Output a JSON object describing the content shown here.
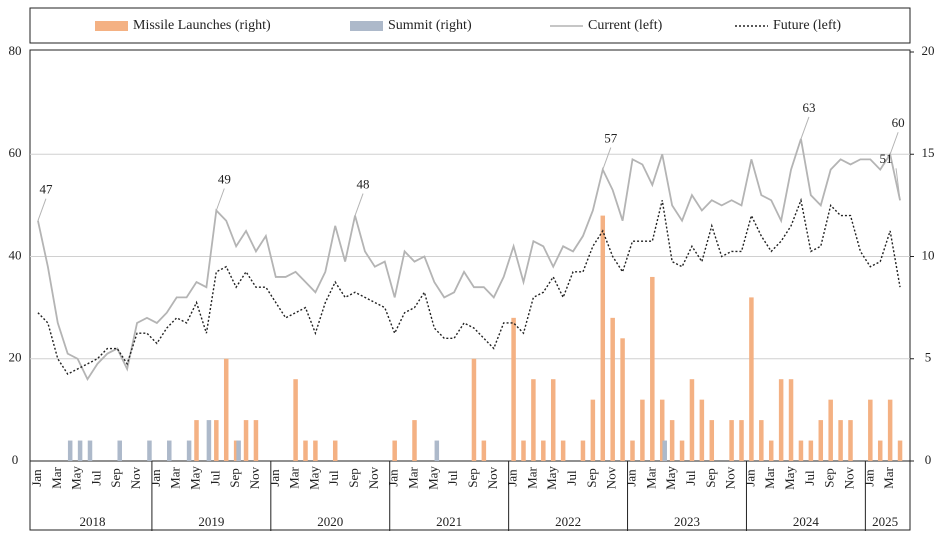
{
  "chart_data": {
    "type": "combo",
    "legend": {
      "position": "top"
    },
    "ylim": [
      0,
      80
    ],
    "yticks": [
      0,
      20,
      40,
      60,
      80
    ],
    "y2lim": [
      0,
      20
    ],
    "y2ticks": [
      0,
      5,
      10,
      15,
      20
    ],
    "grid": true,
    "categories": [
      "Jan",
      null,
      "Mar",
      null,
      "May",
      null,
      "Jul",
      null,
      "Sep",
      null,
      "Nov",
      null,
      "Jan",
      null,
      "Mar",
      null,
      "May",
      null,
      "Jul",
      null,
      "Sep",
      null,
      "Nov",
      null,
      "Jan",
      null,
      "Mar",
      null,
      "May",
      null,
      "Jul",
      null,
      "Sep",
      null,
      "Nov",
      null,
      "Jan",
      null,
      "Mar",
      null,
      "May",
      null,
      "Jul",
      null,
      "Sep",
      null,
      "Nov",
      null,
      "Jan",
      null,
      "Mar",
      null,
      "May",
      null,
      "Jul",
      null,
      "Sep",
      null,
      "Nov",
      null,
      "Jan",
      null,
      "Mar",
      null,
      "May",
      null,
      "Jul",
      null,
      "Sep",
      null,
      "Nov",
      null,
      "Jan",
      null,
      "Mar",
      null,
      "May",
      null,
      "Jul",
      null,
      "Sep",
      null,
      "Nov",
      null,
      "Jan",
      null,
      "Mar",
      null
    ],
    "years": [
      "2018",
      "2019",
      "2020",
      "2021",
      "2022",
      "2023",
      "2024",
      "2025"
    ],
    "series": [
      {
        "name": "Missile Launches (right)",
        "type": "bar",
        "axis": "y2",
        "color": "#f4b183",
        "values": [
          0,
          0,
          0,
          0,
          0,
          0,
          0,
          0,
          0,
          0,
          0,
          0,
          0,
          0,
          0,
          0,
          2,
          0,
          2,
          5,
          1,
          2,
          2,
          0,
          0,
          0,
          4,
          1,
          1,
          0,
          1,
          0,
          0,
          0,
          0,
          0,
          1,
          0,
          2,
          0,
          0,
          0,
          0,
          0,
          5,
          1,
          0,
          0,
          7,
          1,
          4,
          1,
          4,
          1,
          0,
          1,
          3,
          12,
          7,
          6,
          1,
          3,
          9,
          3,
          2,
          1,
          4,
          3,
          2,
          0,
          2,
          2,
          8,
          2,
          1,
          4,
          4,
          1,
          1,
          2,
          3,
          2,
          2,
          0,
          3,
          1,
          3,
          1
        ]
      },
      {
        "name": "Summit (right)",
        "type": "bar",
        "axis": "y2",
        "color": "#adb9ca",
        "values": [
          0,
          0,
          0,
          1,
          1,
          1,
          0,
          0,
          1,
          0,
          0,
          1,
          0,
          1,
          0,
          1,
          0,
          2,
          0,
          0,
          1,
          0,
          0,
          0,
          0,
          0,
          0,
          0,
          0,
          0,
          0,
          0,
          0,
          0,
          0,
          0,
          0,
          0,
          0,
          0,
          1,
          0,
          0,
          0,
          0,
          0,
          0,
          0,
          0,
          0,
          0,
          0,
          0,
          0,
          0,
          0,
          0,
          0,
          0,
          0,
          0,
          0,
          0,
          1,
          0,
          0,
          0,
          0,
          0,
          0,
          0,
          0,
          0,
          0,
          0,
          0,
          0,
          0,
          0,
          0,
          0,
          0,
          0,
          0,
          0,
          0,
          0,
          0
        ]
      },
      {
        "name": "Current (left)",
        "type": "line",
        "color": "#b4b4b4",
        "values": [
          47,
          38,
          27,
          21,
          20,
          16,
          19,
          21,
          22,
          18,
          27,
          28,
          27,
          29,
          32,
          32,
          35,
          34,
          49,
          47,
          42,
          45,
          41,
          44,
          36,
          36,
          37,
          35,
          33,
          37,
          46,
          39,
          48,
          41,
          38,
          39,
          32,
          41,
          39,
          40,
          35,
          32,
          33,
          37,
          34,
          34,
          32,
          36,
          42,
          35,
          43,
          42,
          38,
          42,
          41,
          44,
          49,
          57,
          53,
          47,
          59,
          58,
          54,
          60,
          50,
          47,
          52,
          49,
          51,
          50,
          51,
          50,
          59,
          52,
          51,
          47,
          57,
          63,
          52,
          50,
          57,
          59,
          58,
          59,
          59,
          57,
          60,
          51
        ],
        "value_labels": [
          "47",
          null,
          null,
          null,
          null,
          null,
          null,
          null,
          null,
          null,
          null,
          null,
          null,
          null,
          null,
          null,
          null,
          null,
          "49",
          null,
          null,
          null,
          null,
          null,
          null,
          null,
          null,
          null,
          null,
          null,
          null,
          null,
          "48",
          null,
          null,
          null,
          null,
          null,
          null,
          null,
          null,
          null,
          null,
          null,
          null,
          null,
          null,
          null,
          null,
          null,
          null,
          null,
          null,
          null,
          null,
          null,
          null,
          "57",
          null,
          null,
          null,
          null,
          null,
          null,
          null,
          null,
          null,
          null,
          null,
          null,
          null,
          null,
          null,
          null,
          null,
          null,
          null,
          "63",
          null,
          null,
          null,
          null,
          null,
          null,
          null,
          null,
          "60",
          "51"
        ]
      },
      {
        "name": "Future (left)",
        "type": "line",
        "dash": true,
        "color": "#222222",
        "values": [
          29,
          27,
          20,
          17,
          18,
          19,
          20,
          22,
          22,
          19,
          25,
          25,
          23,
          26,
          28,
          27,
          31,
          25,
          37,
          38,
          34,
          37,
          34,
          34,
          31,
          28,
          29,
          30,
          25,
          31,
          35,
          32,
          33,
          32,
          31,
          30,
          25,
          29,
          30,
          33,
          26,
          24,
          24,
          27,
          26,
          24,
          22,
          27,
          27,
          25,
          32,
          33,
          36,
          32,
          37,
          37,
          42,
          45,
          40,
          37,
          43,
          43,
          43,
          51,
          39,
          38,
          42,
          39,
          46,
          40,
          41,
          41,
          48,
          44,
          41,
          43,
          46,
          51,
          41,
          42,
          50,
          48,
          48,
          41,
          38,
          39,
          45,
          34
        ]
      }
    ]
  }
}
